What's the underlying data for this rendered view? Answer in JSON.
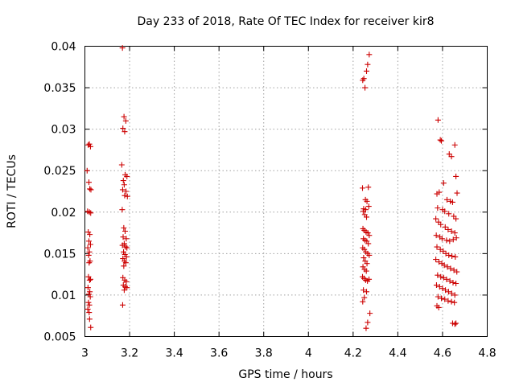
{
  "chart_data": {
    "type": "scatter",
    "title": "Day 233 of 2018, Rate Of TEC Index for receiver kir8",
    "xlabel": "GPS time / hours",
    "ylabel": "ROTI / TECUs",
    "xlim": [
      3,
      4.8
    ],
    "ylim": [
      0.005,
      0.04
    ],
    "xticks": [
      3,
      3.2,
      3.4,
      3.6,
      3.8,
      4,
      4.2,
      4.4,
      4.6,
      4.8
    ],
    "xtick_labels": [
      "3",
      "3.2",
      "3.4",
      "3.6",
      "3.8",
      "4",
      "4.2",
      "4.4",
      "4.6",
      "4.8"
    ],
    "yticks": [
      0.005,
      0.01,
      0.015,
      0.02,
      0.025,
      0.03,
      0.035,
      0.04
    ],
    "ytick_labels": [
      "0.005",
      "0.01",
      "0.015",
      "0.02",
      "0.025",
      "0.03",
      "0.035",
      "0.04"
    ],
    "grid": true,
    "marker": "+",
    "marker_color": "#cc0000",
    "series": [
      {
        "name": "ROTI",
        "points": [
          [
            3.015,
            0.0281
          ],
          [
            3.02,
            0.0282
          ],
          [
            3.025,
            0.0279
          ],
          [
            3.01,
            0.025
          ],
          [
            3.018,
            0.0236
          ],
          [
            3.022,
            0.0228
          ],
          [
            3.027,
            0.0227
          ],
          [
            3.012,
            0.0201
          ],
          [
            3.02,
            0.02
          ],
          [
            3.026,
            0.0199
          ],
          [
            3.015,
            0.0176
          ],
          [
            3.022,
            0.0173
          ],
          [
            3.018,
            0.0165
          ],
          [
            3.025,
            0.0161
          ],
          [
            3.013,
            0.0157
          ],
          [
            3.02,
            0.0152
          ],
          [
            3.017,
            0.0148
          ],
          [
            3.023,
            0.0141
          ],
          [
            3.019,
            0.0139
          ],
          [
            3.016,
            0.0122
          ],
          [
            3.021,
            0.0118
          ],
          [
            3.025,
            0.0119
          ],
          [
            3.014,
            0.0109
          ],
          [
            3.022,
            0.0104
          ],
          [
            3.018,
            0.0101
          ],
          [
            3.024,
            0.0098
          ],
          [
            3.016,
            0.0091
          ],
          [
            3.02,
            0.0088
          ],
          [
            3.013,
            0.0083
          ],
          [
            3.019,
            0.0079
          ],
          [
            3.021,
            0.0071
          ],
          [
            3.026,
            0.0061
          ],
          [
            3.168,
            0.0398
          ],
          [
            3.175,
            0.0315
          ],
          [
            3.183,
            0.031
          ],
          [
            3.17,
            0.0301
          ],
          [
            3.178,
            0.0297
          ],
          [
            3.165,
            0.0257
          ],
          [
            3.18,
            0.0245
          ],
          [
            3.188,
            0.0243
          ],
          [
            3.172,
            0.0238
          ],
          [
            3.176,
            0.0233
          ],
          [
            3.169,
            0.0227
          ],
          [
            3.184,
            0.0225
          ],
          [
            3.178,
            0.022
          ],
          [
            3.19,
            0.0219
          ],
          [
            3.167,
            0.0203
          ],
          [
            3.174,
            0.0181
          ],
          [
            3.18,
            0.0177
          ],
          [
            3.171,
            0.017
          ],
          [
            3.185,
            0.0168
          ],
          [
            3.176,
            0.0162
          ],
          [
            3.168,
            0.016
          ],
          [
            3.182,
            0.0158
          ],
          [
            3.188,
            0.0157
          ],
          [
            3.173,
            0.0152
          ],
          [
            3.179,
            0.0149
          ],
          [
            3.186,
            0.0146
          ],
          [
            3.17,
            0.0144
          ],
          [
            3.177,
            0.0141
          ],
          [
            3.183,
            0.0139
          ],
          [
            3.174,
            0.0135
          ],
          [
            3.17,
            0.0121
          ],
          [
            3.178,
            0.0118
          ],
          [
            3.185,
            0.0116
          ],
          [
            3.172,
            0.0112
          ],
          [
            3.18,
            0.011
          ],
          [
            3.188,
            0.0109
          ],
          [
            3.176,
            0.0106
          ],
          [
            3.169,
            0.0088
          ],
          [
            4.243,
            0.0359
          ],
          [
            4.248,
            0.0361
          ],
          [
            4.253,
            0.035
          ],
          [
            4.26,
            0.037
          ],
          [
            4.265,
            0.0378
          ],
          [
            4.272,
            0.039
          ],
          [
            4.242,
            0.0229
          ],
          [
            4.268,
            0.023
          ],
          [
            4.255,
            0.0215
          ],
          [
            4.262,
            0.0213
          ],
          [
            4.247,
            0.0204
          ],
          [
            4.245,
            0.0201
          ],
          [
            4.256,
            0.0203
          ],
          [
            4.27,
            0.0207
          ],
          [
            4.252,
            0.0197
          ],
          [
            4.26,
            0.0194
          ],
          [
            4.244,
            0.018
          ],
          [
            4.25,
            0.0178
          ],
          [
            4.258,
            0.0176
          ],
          [
            4.266,
            0.0175
          ],
          [
            4.272,
            0.0172
          ],
          [
            4.246,
            0.0168
          ],
          [
            4.253,
            0.0166
          ],
          [
            4.261,
            0.0165
          ],
          [
            4.268,
            0.0162
          ],
          [
            4.243,
            0.0157
          ],
          [
            4.25,
            0.0155
          ],
          [
            4.257,
            0.0152
          ],
          [
            4.265,
            0.015
          ],
          [
            4.272,
            0.0148
          ],
          [
            4.247,
            0.0145
          ],
          [
            4.254,
            0.0141
          ],
          [
            4.262,
            0.0138
          ],
          [
            4.244,
            0.0134
          ],
          [
            4.251,
            0.0131
          ],
          [
            4.259,
            0.0129
          ],
          [
            4.242,
            0.0122
          ],
          [
            4.249,
            0.012
          ],
          [
            4.256,
            0.0118
          ],
          [
            4.264,
            0.0117
          ],
          [
            4.271,
            0.0119
          ],
          [
            4.246,
            0.0106
          ],
          [
            4.26,
            0.0104
          ],
          [
            4.243,
            0.0092
          ],
          [
            4.25,
            0.0097
          ],
          [
            4.275,
            0.0078
          ],
          [
            4.265,
            0.0067
          ],
          [
            4.258,
            0.006
          ],
          [
            4.58,
            0.0311
          ],
          [
            4.59,
            0.0287
          ],
          [
            4.595,
            0.0286
          ],
          [
            4.63,
            0.027
          ],
          [
            4.64,
            0.0267
          ],
          [
            4.655,
            0.0281
          ],
          [
            4.66,
            0.0243
          ],
          [
            4.575,
            0.0222
          ],
          [
            4.585,
            0.0224
          ],
          [
            4.605,
            0.0235
          ],
          [
            4.62,
            0.0215
          ],
          [
            4.635,
            0.0213
          ],
          [
            4.645,
            0.0212
          ],
          [
            4.665,
            0.0223
          ],
          [
            4.578,
            0.0205
          ],
          [
            4.6,
            0.0203
          ],
          [
            4.61,
            0.0201
          ],
          [
            4.628,
            0.0198
          ],
          [
            4.65,
            0.0195
          ],
          [
            4.66,
            0.0192
          ],
          [
            4.57,
            0.0192
          ],
          [
            4.582,
            0.0188
          ],
          [
            4.592,
            0.0185
          ],
          [
            4.612,
            0.0182
          ],
          [
            4.625,
            0.0179
          ],
          [
            4.64,
            0.0177
          ],
          [
            4.655,
            0.0175
          ],
          [
            4.572,
            0.0172
          ],
          [
            4.588,
            0.017
          ],
          [
            4.598,
            0.0168
          ],
          [
            4.618,
            0.0166
          ],
          [
            4.632,
            0.0165
          ],
          [
            4.648,
            0.0167
          ],
          [
            4.662,
            0.0169
          ],
          [
            4.575,
            0.0158
          ],
          [
            4.59,
            0.0155
          ],
          [
            4.603,
            0.0153
          ],
          [
            4.615,
            0.015
          ],
          [
            4.628,
            0.0148
          ],
          [
            4.642,
            0.0147
          ],
          [
            4.657,
            0.0146
          ],
          [
            4.57,
            0.0143
          ],
          [
            4.584,
            0.014
          ],
          [
            4.597,
            0.0138
          ],
          [
            4.608,
            0.0136
          ],
          [
            4.622,
            0.0134
          ],
          [
            4.636,
            0.0132
          ],
          [
            4.651,
            0.013
          ],
          [
            4.664,
            0.0128
          ],
          [
            4.578,
            0.0124
          ],
          [
            4.592,
            0.0122
          ],
          [
            4.605,
            0.0121
          ],
          [
            4.618,
            0.0119
          ],
          [
            4.633,
            0.0117
          ],
          [
            4.647,
            0.0115
          ],
          [
            4.66,
            0.0114
          ],
          [
            4.573,
            0.0112
          ],
          [
            4.587,
            0.011
          ],
          [
            4.6,
            0.0108
          ],
          [
            4.613,
            0.0106
          ],
          [
            4.627,
            0.0104
          ],
          [
            4.641,
            0.0102
          ],
          [
            4.655,
            0.01
          ],
          [
            4.58,
            0.0098
          ],
          [
            4.595,
            0.0096
          ],
          [
            4.61,
            0.0095
          ],
          [
            4.625,
            0.0093
          ],
          [
            4.64,
            0.0092
          ],
          [
            4.653,
            0.0091
          ],
          [
            4.575,
            0.0087
          ],
          [
            4.583,
            0.0085
          ],
          [
            4.645,
            0.0066
          ],
          [
            4.655,
            0.0065
          ],
          [
            4.66,
            0.0066
          ]
        ]
      }
    ]
  }
}
